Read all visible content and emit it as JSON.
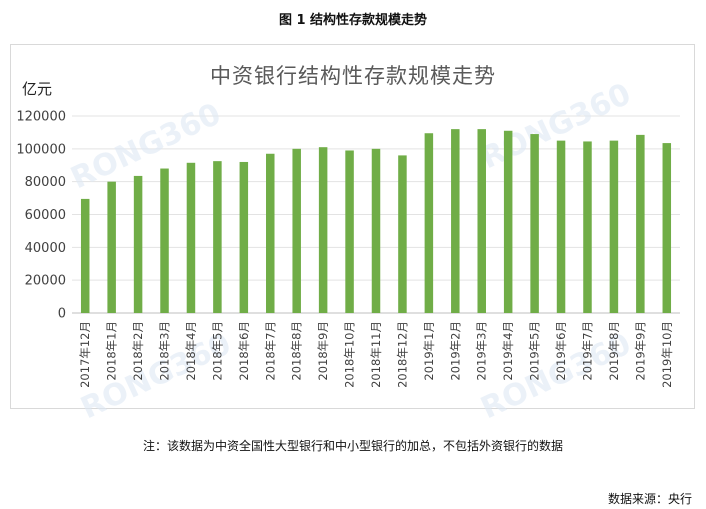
{
  "figure_caption": "图 1 结构性存款规模走势",
  "watermark_text": "RONG360",
  "chart_data": {
    "type": "bar",
    "title": "中资银行结构性存款规模走势",
    "ylabel": "亿元",
    "xlabel": "",
    "ylim": [
      0,
      120000
    ],
    "y_ticks": [
      0,
      20000,
      40000,
      60000,
      80000,
      100000,
      120000
    ],
    "grid": true,
    "bar_color": "#70ad47",
    "categories": [
      "2017年12月",
      "2018年1月",
      "2018年2月",
      "2018年3月",
      "2018年4月",
      "2018年5月",
      "2018年6月",
      "2018年7月",
      "2018年8月",
      "2018年9月",
      "2018年10月",
      "2018年11月",
      "2018年12月",
      "2019年1月",
      "2019年2月",
      "2019年3月",
      "2019年4月",
      "2019年5月",
      "2019年6月",
      "2019年7月",
      "2019年8月",
      "2019年9月",
      "2019年10月"
    ],
    "values": [
      69500,
      80000,
      83500,
      88000,
      91500,
      92500,
      92000,
      97000,
      100000,
      101000,
      99000,
      100000,
      96000,
      109500,
      112000,
      112000,
      111000,
      109000,
      105000,
      104500,
      105000,
      108500,
      103500
    ]
  },
  "note": "注：该数据为中资全国性大型银行和中小型银行的加总，不包括外资银行的数据",
  "source": "数据来源：央行"
}
